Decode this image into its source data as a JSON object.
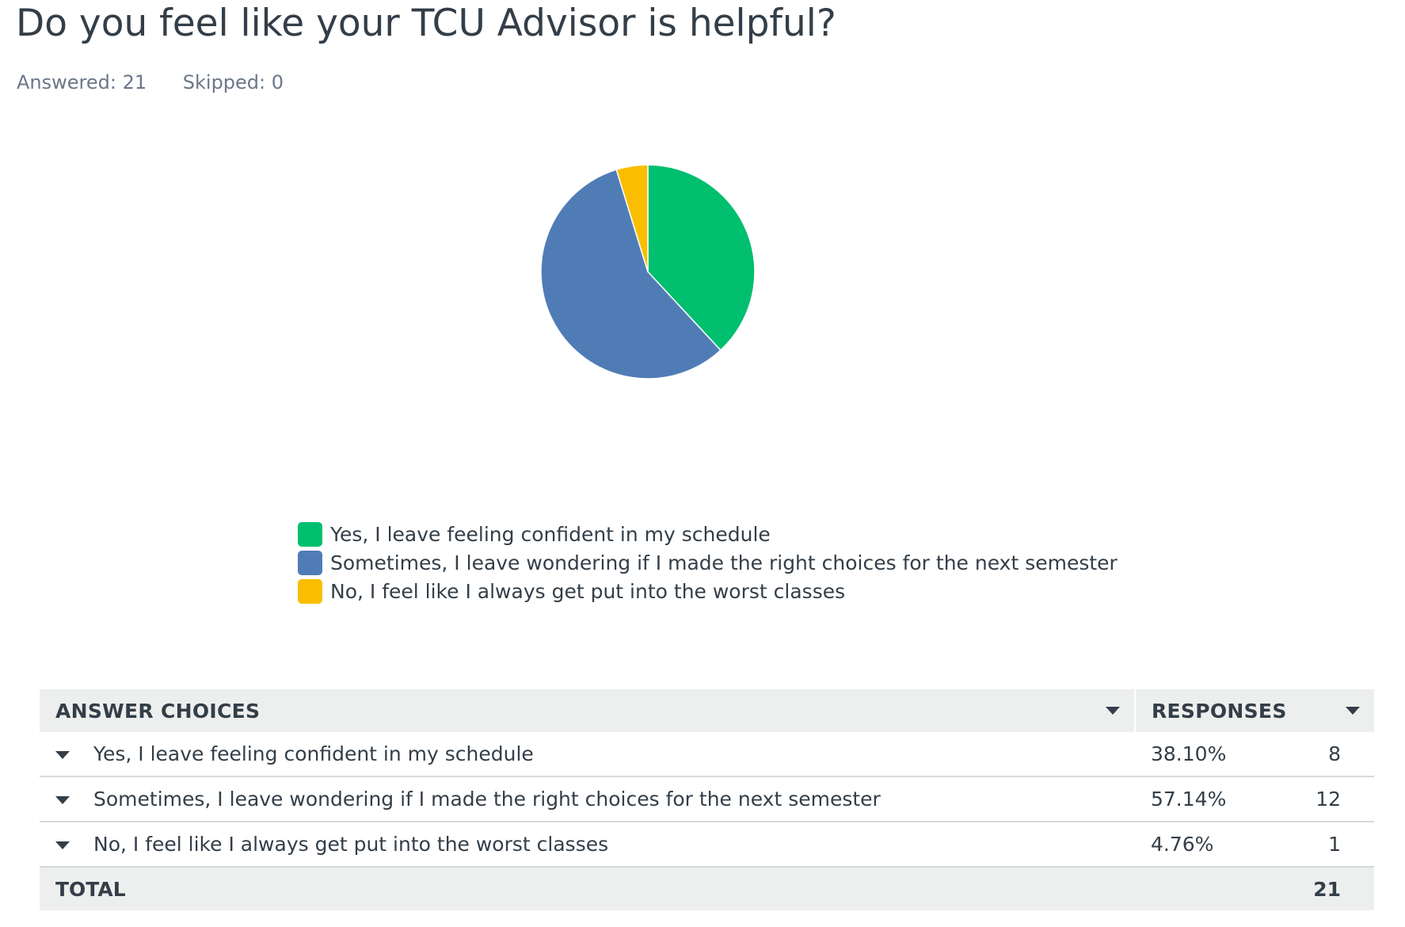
{
  "question": {
    "title": "Do you feel like your TCU Advisor is helpful?"
  },
  "stats": {
    "answered": "Answered: 21",
    "skipped": "Skipped: 0"
  },
  "chart_data": {
    "type": "pie",
    "categories": [
      "Yes, I leave feeling confident in my schedule",
      "Sometimes, I leave wondering if I made the right choices for the next semester",
      "No, I feel like I always get put into the worst classes"
    ],
    "values": [
      38.1,
      57.14,
      4.76
    ],
    "colors": [
      "#00bf6f",
      "#507cb6",
      "#f9be00"
    ],
    "legend": "bottom"
  },
  "table": {
    "headers": {
      "choices": "ANSWER CHOICES",
      "responses": "RESPONSES"
    },
    "rows": [
      {
        "choice": "Yes, I leave feeling confident in my schedule",
        "percent": "38.10%",
        "count": "8"
      },
      {
        "choice": "Sometimes, I leave wondering if I made the right choices for the next semester",
        "percent": "57.14%",
        "count": "12"
      },
      {
        "choice": "No, I feel like I always get put into the worst classes",
        "percent": "4.76%",
        "count": "1"
      }
    ],
    "total": {
      "label": "TOTAL",
      "count": "21"
    }
  }
}
